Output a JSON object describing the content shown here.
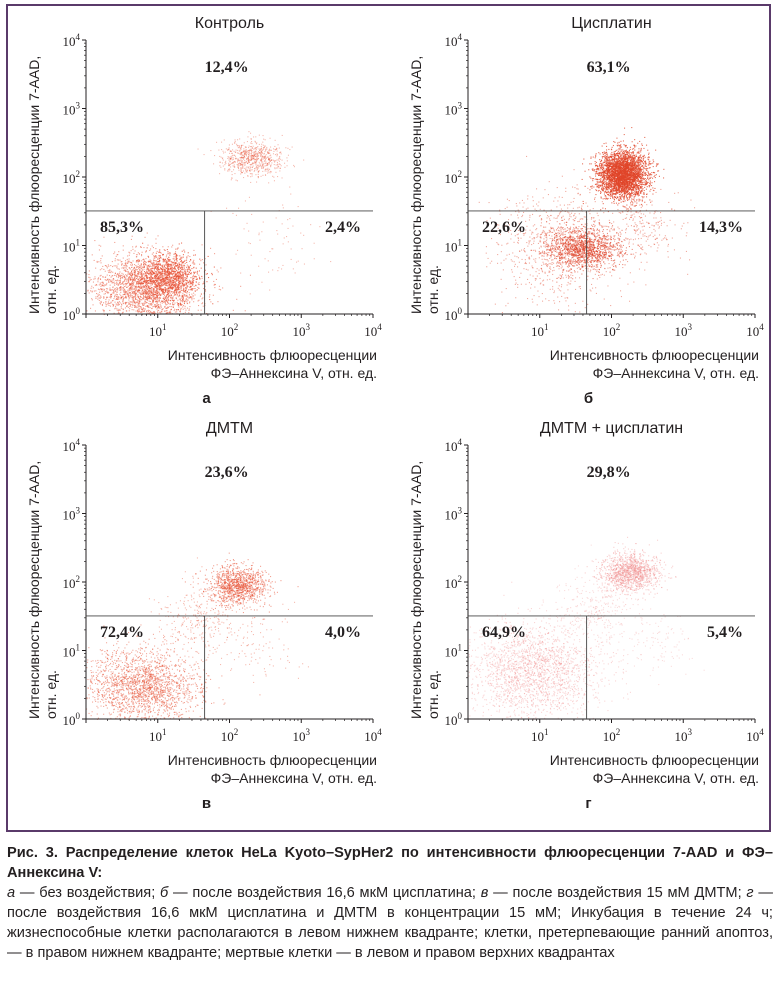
{
  "figure": {
    "caption_title": "Рис. 3. Распределение клеток HeLa Kyoto–SypHer2 по интенсивности флюоресценции 7-AAD и ФЭ–Аннексина V:",
    "caption_parts": [
      {
        "letter": "а",
        "text": " — без воздействия; "
      },
      {
        "letter": "б",
        "text": " — после воздействия 16,6 мкМ цисплатина; "
      },
      {
        "letter": "в",
        "text": " — после воздействия 15 мМ ДМТМ; "
      },
      {
        "letter": "г",
        "text": " — после воздействия 16,6 мкМ цисплатина и ДМТМ в концентрации 15 мМ; "
      }
    ],
    "caption_tail": "Инкубация в течение 24 ч; жизнеспособные клетки располагаются в левом нижнем квадранте; клетки, претерпевающие ранний апоптоз, — в правом нижнем квадранте; мертвые клетки — в левом и правом верхних квадрантах"
  },
  "chart_data": [
    {
      "type": "scatter",
      "panel_letter": "а",
      "title": "Контроль",
      "xlabel": [
        "Интенсивность флюоресценции",
        "ФЭ–Аннексина V, отн. ед."
      ],
      "ylabel": [
        "Интенсивность флюоресценции 7-AAD,",
        "отн. ед."
      ],
      "x_scale": "log",
      "y_scale": "log",
      "xlim": [
        1,
        10000
      ],
      "ylim": [
        1,
        10000
      ],
      "x_ticks": [
        "10^1",
        "10^2",
        "10^3",
        "10^4"
      ],
      "y_ticks": [
        "10^0",
        "10^1",
        "10^2",
        "10^3",
        "10^4"
      ],
      "gate": {
        "x": 45,
        "y": 32
      },
      "quadrants": {
        "upper": "12,4%",
        "lower_left": "85,3%",
        "lower_right": "2,4%"
      },
      "point_color": "#e8553a",
      "clusters": [
        {
          "cx": 7,
          "cy": 2.5,
          "sx": 0.38,
          "sy": 0.25,
          "n": 2300,
          "alpha": 0.55
        },
        {
          "cx": 14,
          "cy": 3.5,
          "sx": 0.22,
          "sy": 0.17,
          "n": 900,
          "alpha": 0.8
        },
        {
          "cx": 200,
          "cy": 190,
          "sx": 0.22,
          "sy": 0.13,
          "n": 700,
          "alpha": 0.4
        },
        {
          "cx": 400,
          "cy": 12,
          "sx": 0.3,
          "sy": 0.3,
          "n": 70,
          "alpha": 0.4
        }
      ]
    },
    {
      "type": "scatter",
      "panel_letter": "б",
      "title": "Цисплатин",
      "xlabel": [
        "Интенсивность флюоресценции",
        "ФЭ–Аннексина V, отн. ед."
      ],
      "ylabel": [
        "Интенсивность флюоресценции 7-AAD,",
        "отн. ед."
      ],
      "x_scale": "log",
      "y_scale": "log",
      "xlim": [
        1,
        10000
      ],
      "ylim": [
        1,
        10000
      ],
      "x_ticks": [
        "10^1",
        "10^2",
        "10^3",
        "10^4"
      ],
      "y_ticks": [
        "10^0",
        "10^1",
        "10^2",
        "10^3",
        "10^4"
      ],
      "gate": {
        "x": 45,
        "y": 32
      },
      "quadrants": {
        "upper": "63,1%",
        "lower_left": "22,6%",
        "lower_right": "14,3%"
      },
      "point_color": "#e0452a",
      "clusters": [
        {
          "cx": 140,
          "cy": 110,
          "sx": 0.17,
          "sy": 0.17,
          "n": 3400,
          "alpha": 0.75
        },
        {
          "cx": 40,
          "cy": 9,
          "sx": 0.25,
          "sy": 0.15,
          "n": 1300,
          "alpha": 0.6
        },
        {
          "cx": 20,
          "cy": 10,
          "sx": 0.45,
          "sy": 0.4,
          "n": 900,
          "alpha": 0.45
        },
        {
          "cx": 300,
          "cy": 18,
          "sx": 0.25,
          "sy": 0.25,
          "n": 200,
          "alpha": 0.45
        }
      ]
    },
    {
      "type": "scatter",
      "panel_letter": "в",
      "title": "ДМТМ",
      "xlabel": [
        "Интенсивность флюоресценции",
        "ФЭ–Аннексина V, отн. ед."
      ],
      "ylabel": [
        "Интенсивность флюоресценции 7-AAD,",
        "отн. ед."
      ],
      "x_scale": "log",
      "y_scale": "log",
      "xlim": [
        1,
        10000
      ],
      "ylim": [
        1,
        10000
      ],
      "x_ticks": [
        "10^1",
        "10^2",
        "10^3",
        "10^4"
      ],
      "y_ticks": [
        "10^0",
        "10^1",
        "10^2",
        "10^3",
        "10^4"
      ],
      "gate": {
        "x": 45,
        "y": 32
      },
      "quadrants": {
        "upper": "23,6%",
        "lower_left": "72,4%",
        "lower_right": "4,0%"
      },
      "point_color": "#e8553a",
      "clusters": [
        {
          "cx": 6,
          "cy": 3,
          "sx": 0.4,
          "sy": 0.28,
          "n": 2000,
          "alpha": 0.5
        },
        {
          "cx": 130,
          "cy": 90,
          "sx": 0.2,
          "sy": 0.14,
          "n": 1100,
          "alpha": 0.55
        },
        {
          "cx": 40,
          "cy": 30,
          "sx": 0.3,
          "sy": 0.3,
          "n": 300,
          "alpha": 0.4
        },
        {
          "cx": 300,
          "cy": 12,
          "sx": 0.3,
          "sy": 0.3,
          "n": 90,
          "alpha": 0.4
        }
      ]
    },
    {
      "type": "scatter",
      "panel_letter": "г",
      "title": "ДМТМ + цисплатин",
      "xlabel": [
        "Интенсивность флюоресценции",
        "ФЭ–Аннексина V, отн. ед."
      ],
      "ylabel": [
        "Интенсивность флюоресценции 7-AAD,",
        "отн. ед."
      ],
      "x_scale": "log",
      "y_scale": "log",
      "xlim": [
        1,
        10000
      ],
      "ylim": [
        1,
        10000
      ],
      "x_ticks": [
        "10^1",
        "10^2",
        "10^3",
        "10^4"
      ],
      "y_ticks": [
        "10^0",
        "10^1",
        "10^2",
        "10^3",
        "10^4"
      ],
      "gate": {
        "x": 45,
        "y": 32
      },
      "quadrants": {
        "upper": "29,8%",
        "lower_left": "64,9%",
        "lower_right": "5,4%"
      },
      "point_color": "#f08a8a",
      "clusters": [
        {
          "cx": 8,
          "cy": 5,
          "sx": 0.45,
          "sy": 0.35,
          "n": 2100,
          "alpha": 0.35
        },
        {
          "cx": 180,
          "cy": 140,
          "sx": 0.2,
          "sy": 0.14,
          "n": 1300,
          "alpha": 0.4
        },
        {
          "cx": 60,
          "cy": 40,
          "sx": 0.3,
          "sy": 0.3,
          "n": 300,
          "alpha": 0.3
        },
        {
          "cx": 350,
          "cy": 14,
          "sx": 0.3,
          "sy": 0.3,
          "n": 120,
          "alpha": 0.3
        }
      ]
    }
  ]
}
